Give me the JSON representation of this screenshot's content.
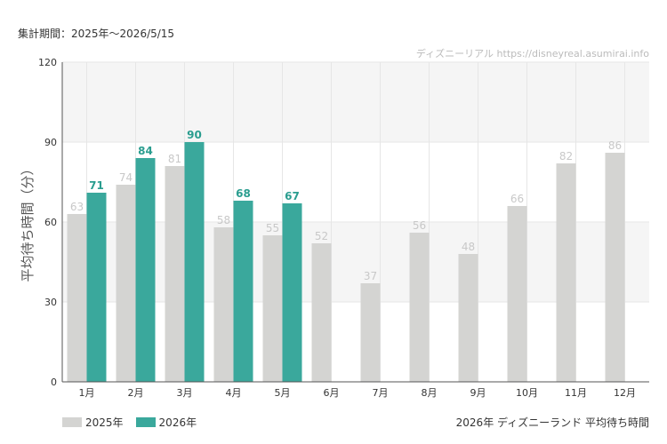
{
  "header": {
    "period": "集計期間：2025年〜2026/5/15",
    "watermark": "ディズニーリアル https://disneyreal.asumirai.info"
  },
  "footer": {
    "caption": "2026年 ディズニーランド 平均待ち時間"
  },
  "colors": {
    "series_2025": "#d4d4d2",
    "series_2026": "#3aa89c",
    "label_2025": "#c8c8c8",
    "label_2026": "#2a9d8f",
    "band": "#f5f5f5",
    "grid": "#e6e6e6"
  },
  "chart_data": {
    "type": "bar",
    "title": "",
    "xlabel": "",
    "ylabel": "平均待ち時間（分）",
    "ylim": [
      0,
      120
    ],
    "yticks": [
      0,
      30,
      60,
      90,
      120
    ],
    "categories": [
      "1月",
      "2月",
      "3月",
      "4月",
      "5月",
      "6月",
      "7月",
      "8月",
      "9月",
      "10月",
      "11月",
      "12月"
    ],
    "series": [
      {
        "name": "2025年",
        "values": [
          63,
          74,
          81,
          58,
          55,
          52,
          37,
          56,
          48,
          66,
          82,
          86
        ]
      },
      {
        "name": "2026年",
        "values": [
          71,
          84,
          90,
          68,
          67,
          null,
          null,
          null,
          null,
          null,
          null,
          null
        ]
      }
    ],
    "grid": true,
    "legend": "bottom-left"
  }
}
